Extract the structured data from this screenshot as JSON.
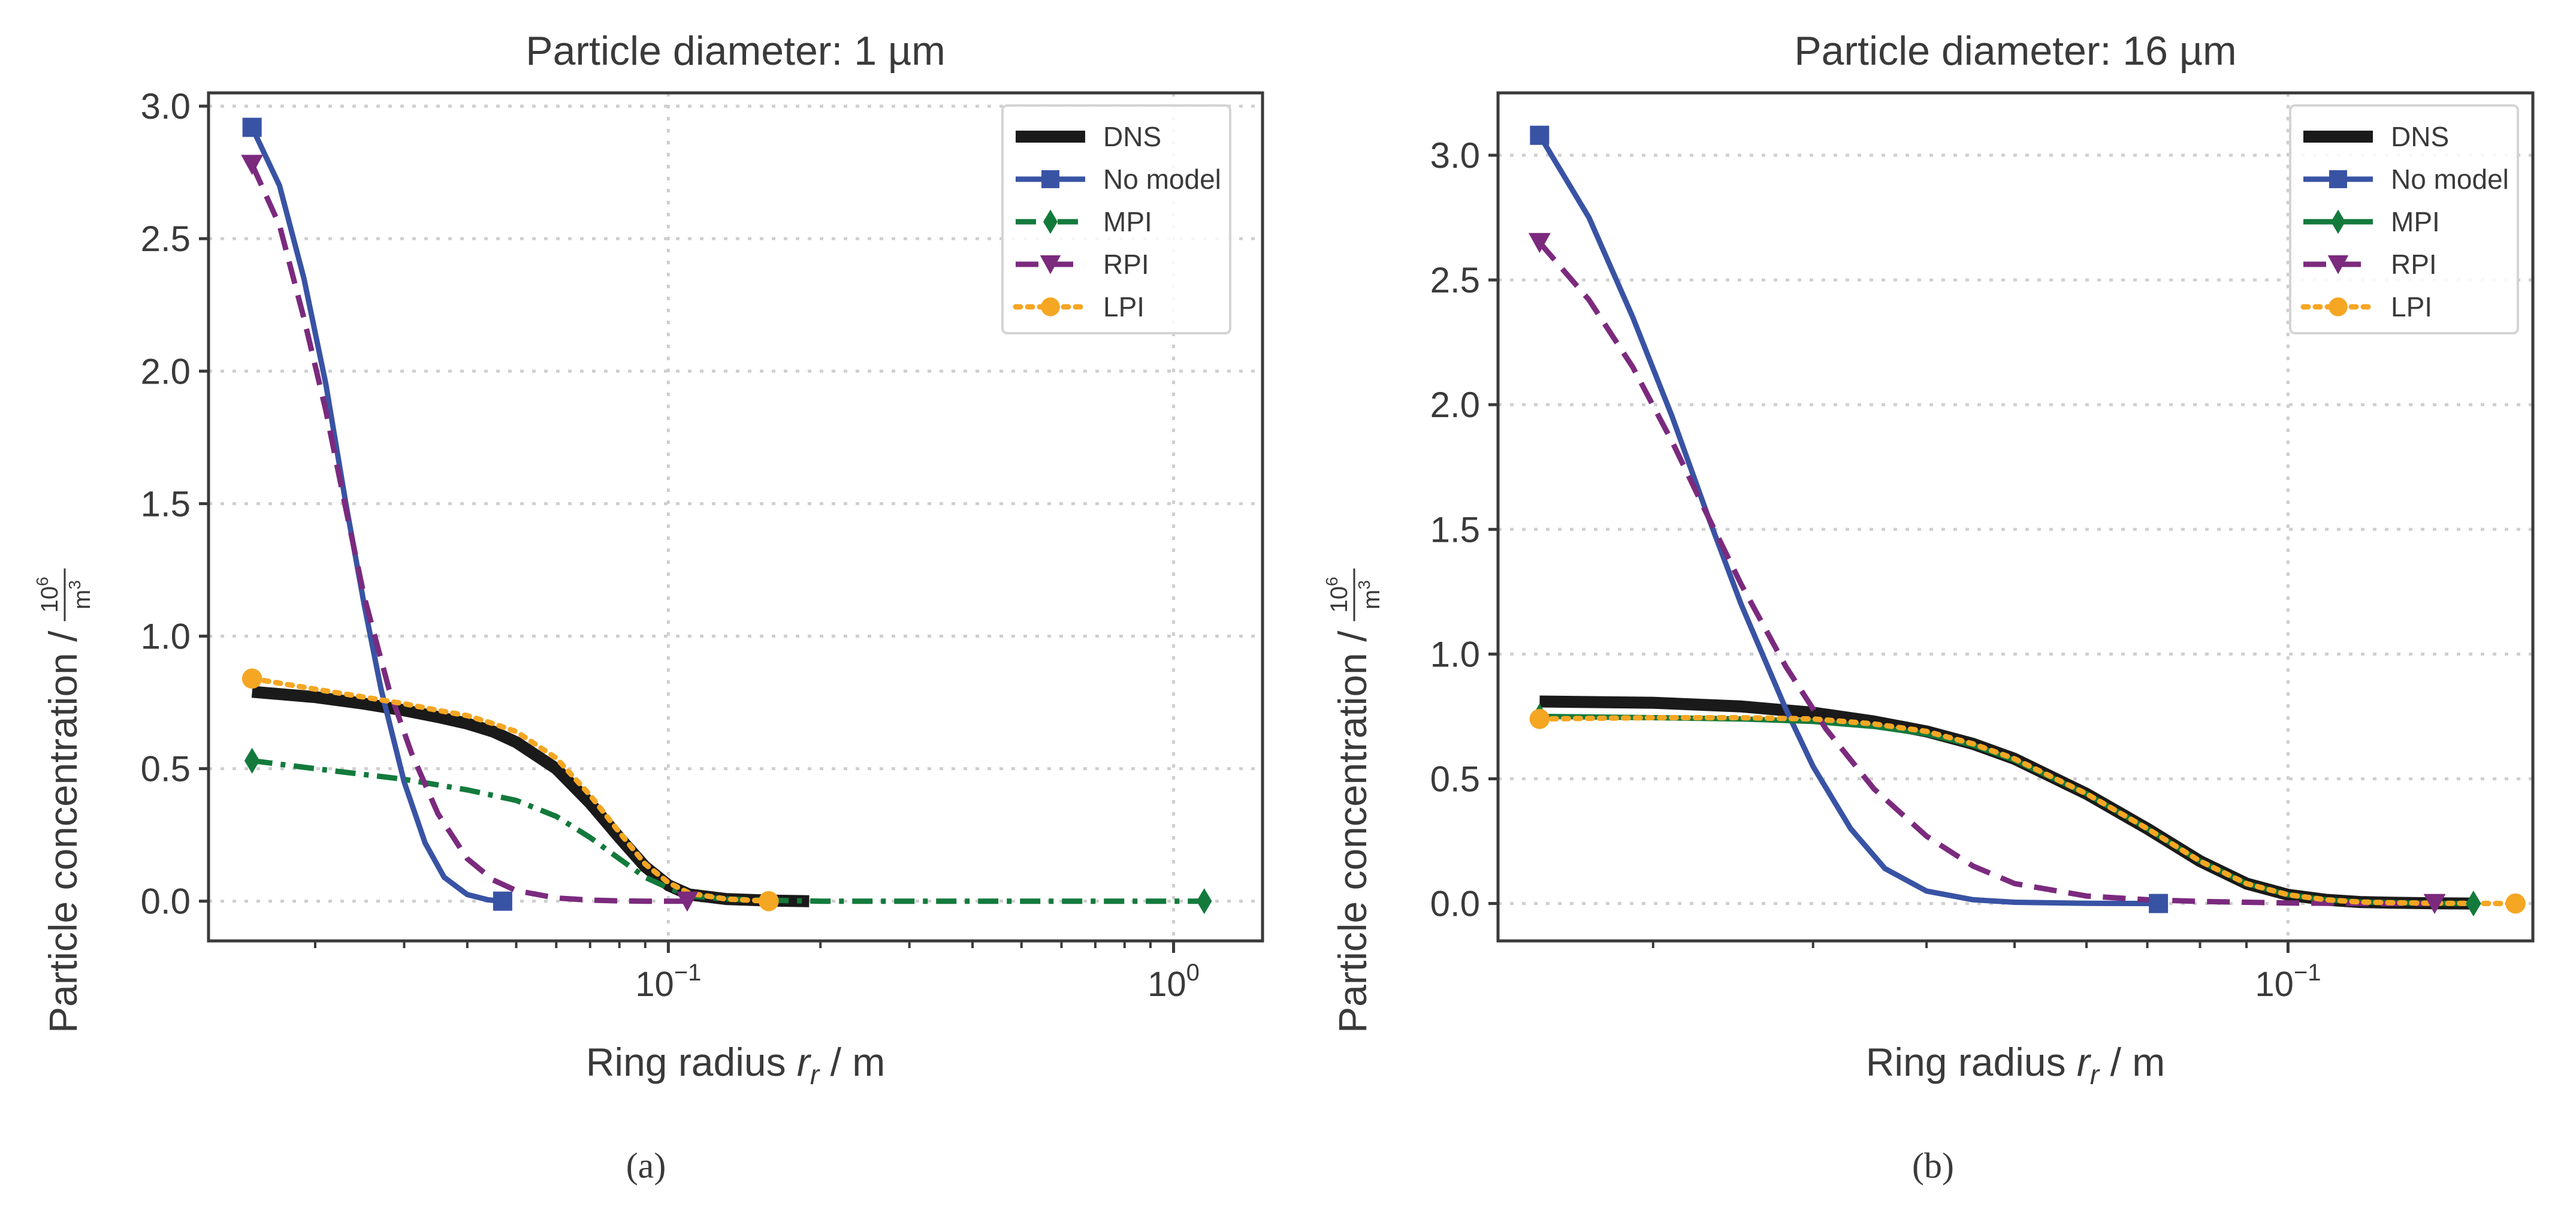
{
  "chart_data": [
    {
      "type": "line",
      "title": "Particle diameter: 1 µm",
      "caption": "(a)",
      "xlabel_text": "Ring radius ",
      "xlabel_var": "r",
      "xlabel_sub": "r",
      "xlabel_unit": " / m",
      "ylabel_text": "Particle concentration / ",
      "ylabel_unit_num": "10",
      "ylabel_unit_exp": "6",
      "ylabel_unit_den": "m",
      "ylabel_unit_den_exp": "3",
      "xscale": "log",
      "xlim": [
        0.0123,
        1.5
      ],
      "ylim": [
        -0.15,
        3.05
      ],
      "yticks": [
        0.0,
        0.5,
        1.0,
        1.5,
        2.0,
        2.5,
        3.0
      ],
      "ytick_labels": [
        "0.0",
        "0.5",
        "1.0",
        "1.5",
        "2.0",
        "2.5",
        "3.0"
      ],
      "xticks": [
        0.1,
        1.0
      ],
      "xtick_labels": [
        {
          "base": "10",
          "exp": "−1"
        },
        {
          "base": "10",
          "exp": "0"
        }
      ],
      "grid": true,
      "legend_position": "top-right",
      "series": [
        {
          "name": "DNS",
          "color": "#1a1a1a",
          "style": "solid",
          "marker": "none",
          "x": [
            0.015,
            0.02,
            0.025,
            0.03,
            0.035,
            0.04,
            0.045,
            0.05,
            0.06,
            0.07,
            0.08,
            0.09,
            0.1,
            0.11,
            0.13,
            0.16,
            0.19
          ],
          "y": [
            0.79,
            0.77,
            0.745,
            0.72,
            0.695,
            0.67,
            0.64,
            0.6,
            0.5,
            0.37,
            0.24,
            0.13,
            0.06,
            0.025,
            0.008,
            0.002,
            0.0
          ]
        },
        {
          "name": "No model",
          "color": "#3953a4",
          "style": "solid",
          "marker": "square",
          "x": [
            0.015,
            0.017,
            0.019,
            0.021,
            0.023,
            0.025,
            0.027,
            0.03,
            0.033,
            0.036,
            0.04,
            0.044,
            0.047
          ],
          "y": [
            2.92,
            2.7,
            2.35,
            1.95,
            1.5,
            1.12,
            0.8,
            0.45,
            0.22,
            0.09,
            0.025,
            0.005,
            0.0
          ]
        },
        {
          "name": "MPI",
          "color": "#137a3c",
          "style": "dashdot",
          "marker": "diamond",
          "x": [
            0.015,
            0.02,
            0.03,
            0.04,
            0.05,
            0.06,
            0.07,
            0.08,
            0.09,
            0.1,
            0.11,
            0.13,
            0.16,
            0.2,
            0.3,
            0.5,
            0.8,
            1.15
          ],
          "y": [
            0.53,
            0.5,
            0.46,
            0.42,
            0.38,
            0.32,
            0.24,
            0.16,
            0.09,
            0.05,
            0.02,
            0.008,
            0.003,
            0.0,
            0.0,
            0.0,
            0.0,
            0.0
          ]
        },
        {
          "name": "RPI",
          "color": "#7b2a7e",
          "style": "dashed",
          "marker": "triangle-down",
          "x": [
            0.015,
            0.017,
            0.019,
            0.021,
            0.023,
            0.025,
            0.028,
            0.031,
            0.035,
            0.04,
            0.045,
            0.05,
            0.06,
            0.07,
            0.08,
            0.09,
            0.1,
            0.109
          ],
          "y": [
            2.78,
            2.55,
            2.2,
            1.85,
            1.48,
            1.15,
            0.8,
            0.56,
            0.33,
            0.16,
            0.08,
            0.04,
            0.012,
            0.004,
            0.001,
            0.0,
            0.0,
            0.0
          ]
        },
        {
          "name": "LPI",
          "color": "#f5a623",
          "style": "dotted",
          "marker": "circle",
          "x": [
            0.015,
            0.02,
            0.025,
            0.03,
            0.035,
            0.04,
            0.045,
            0.05,
            0.06,
            0.07,
            0.08,
            0.09,
            0.1,
            0.11,
            0.13,
            0.158
          ],
          "y": [
            0.84,
            0.8,
            0.77,
            0.745,
            0.72,
            0.7,
            0.67,
            0.64,
            0.54,
            0.4,
            0.26,
            0.14,
            0.07,
            0.03,
            0.008,
            0.0
          ]
        }
      ]
    },
    {
      "type": "line",
      "title": "Particle diameter: 16 µm",
      "caption": "(b)",
      "xlabel_text": "Ring radius ",
      "xlabel_var": "r",
      "xlabel_sub": "r",
      "xlabel_unit": " / m",
      "ylabel_text": "Particle concentration / ",
      "ylabel_unit_num": "10",
      "ylabel_unit_exp": "6",
      "ylabel_unit_den": "m",
      "ylabel_unit_den_exp": "3",
      "xscale": "log",
      "xlim": [
        0.0135,
        0.186
      ],
      "ylim": [
        -0.15,
        3.25
      ],
      "yticks": [
        0.0,
        0.5,
        1.0,
        1.5,
        2.0,
        2.5,
        3.0
      ],
      "ytick_labels": [
        "0.0",
        "0.5",
        "1.0",
        "1.5",
        "2.0",
        "2.5",
        "3.0"
      ],
      "xticks": [
        0.1
      ],
      "xtick_labels": [
        {
          "base": "10",
          "exp": "−1"
        }
      ],
      "grid": true,
      "legend_position": "top-right",
      "series": [
        {
          "name": "DNS",
          "color": "#1a1a1a",
          "style": "solid",
          "marker": "none",
          "x": [
            0.015,
            0.02,
            0.025,
            0.03,
            0.035,
            0.04,
            0.045,
            0.05,
            0.06,
            0.07,
            0.08,
            0.09,
            0.1,
            0.11,
            0.12,
            0.13,
            0.145,
            0.16
          ],
          "y": [
            0.81,
            0.805,
            0.79,
            0.765,
            0.73,
            0.69,
            0.64,
            0.58,
            0.44,
            0.3,
            0.17,
            0.08,
            0.035,
            0.015,
            0.006,
            0.003,
            0.001,
            0.0
          ]
        },
        {
          "name": "No model",
          "color": "#3953a4",
          "style": "solid",
          "marker": "square",
          "x": [
            0.015,
            0.017,
            0.019,
            0.021,
            0.023,
            0.025,
            0.028,
            0.03,
            0.033,
            0.036,
            0.04,
            0.045,
            0.05,
            0.06,
            0.072
          ],
          "y": [
            3.08,
            2.75,
            2.35,
            1.95,
            1.55,
            1.2,
            0.78,
            0.55,
            0.3,
            0.14,
            0.05,
            0.015,
            0.005,
            0.001,
            0.0
          ]
        },
        {
          "name": "MPI",
          "color": "#137a3c",
          "style": "solid",
          "marker": "diamond",
          "x": [
            0.015,
            0.02,
            0.025,
            0.03,
            0.035,
            0.04,
            0.045,
            0.05,
            0.06,
            0.07,
            0.08,
            0.09,
            0.1,
            0.11,
            0.12,
            0.13,
            0.145,
            0.16
          ],
          "y": [
            0.75,
            0.745,
            0.74,
            0.73,
            0.71,
            0.68,
            0.635,
            0.575,
            0.44,
            0.3,
            0.17,
            0.08,
            0.035,
            0.015,
            0.006,
            0.003,
            0.001,
            0.0
          ]
        },
        {
          "name": "RPI",
          "color": "#7b2a7e",
          "style": "dashed",
          "marker": "triangle-down",
          "x": [
            0.015,
            0.017,
            0.019,
            0.021,
            0.023,
            0.025,
            0.028,
            0.031,
            0.035,
            0.04,
            0.045,
            0.05,
            0.06,
            0.07,
            0.08,
            0.1,
            0.12,
            0.145
          ],
          "y": [
            2.65,
            2.42,
            2.15,
            1.85,
            1.55,
            1.28,
            0.95,
            0.7,
            0.46,
            0.27,
            0.15,
            0.08,
            0.03,
            0.015,
            0.008,
            0.002,
            0.0,
            0.0
          ]
        },
        {
          "name": "LPI",
          "color": "#f5a623",
          "style": "dotted",
          "marker": "circle",
          "x": [
            0.015,
            0.02,
            0.025,
            0.03,
            0.035,
            0.04,
            0.045,
            0.05,
            0.06,
            0.07,
            0.08,
            0.09,
            0.1,
            0.11,
            0.12,
            0.13,
            0.15,
            0.178
          ],
          "y": [
            0.74,
            0.745,
            0.745,
            0.74,
            0.72,
            0.69,
            0.64,
            0.58,
            0.44,
            0.3,
            0.17,
            0.08,
            0.035,
            0.015,
            0.006,
            0.003,
            0.001,
            0.0
          ]
        }
      ]
    }
  ]
}
